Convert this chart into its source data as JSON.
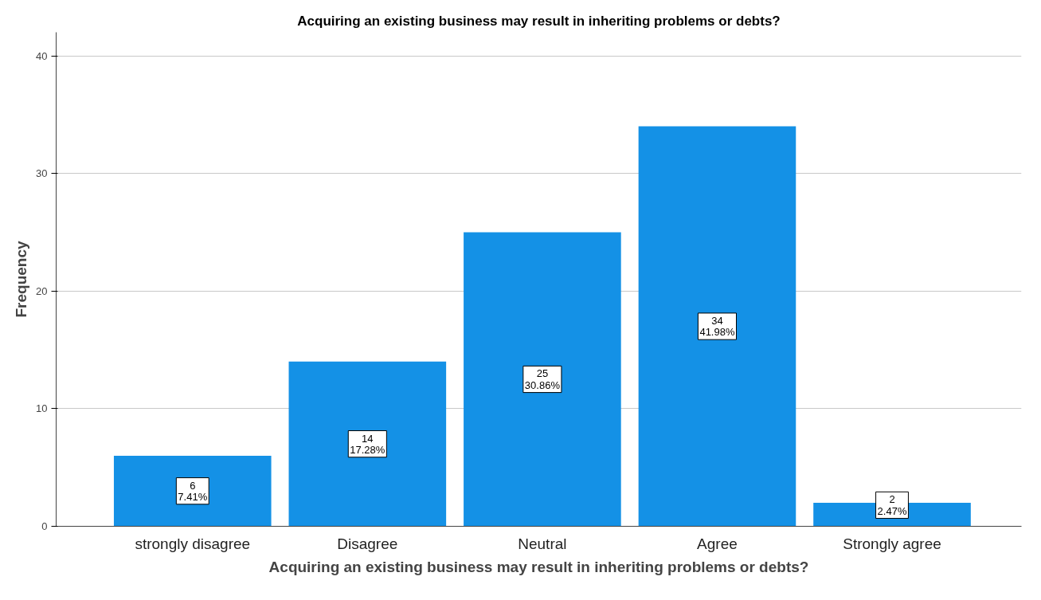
{
  "chart_data": {
    "type": "bar",
    "title": "Acquiring an existing business may result in inheriting problems or debts?",
    "xlabel": "Acquiring an existing business may result in inheriting problems or debts?",
    "ylabel": "Frequency",
    "categories": [
      "strongly disagree",
      "Disagree",
      "Neutral",
      "Agree",
      "Strongly agree"
    ],
    "values": [
      6,
      14,
      25,
      34,
      2
    ],
    "value_labels": [
      "6\n7.41%",
      "14\n17.28%",
      "25\n30.86%",
      "34\n41.98%",
      "2\n2.47%"
    ],
    "color": "#1491e6",
    "ylim": [
      0,
      42
    ],
    "yticks": [
      0,
      10,
      20,
      30,
      40
    ],
    "grid": "y"
  }
}
